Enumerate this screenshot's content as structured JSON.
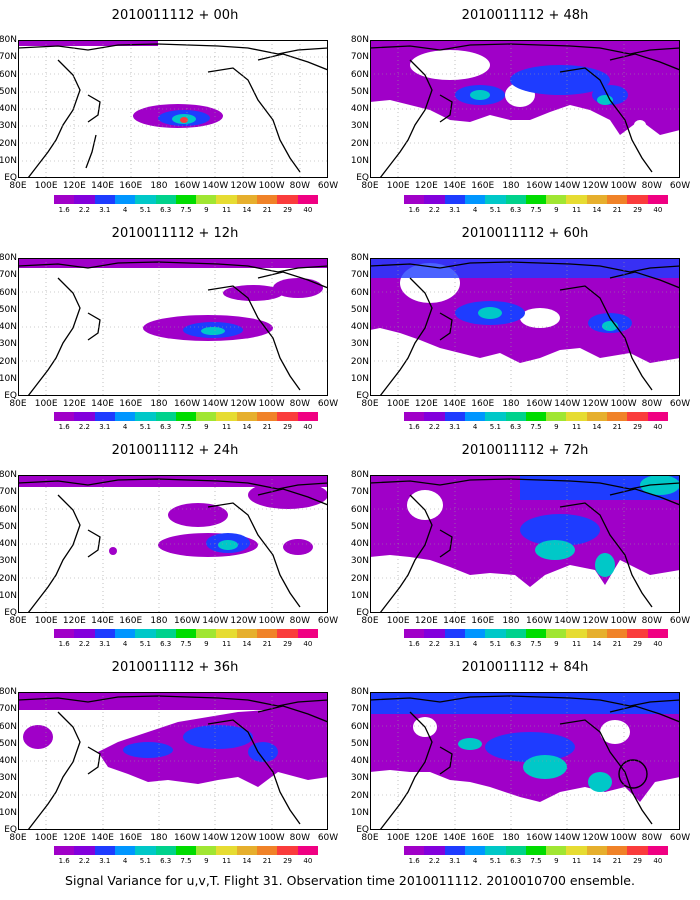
{
  "caption": "Signal Variance for u,v,T. Flight 31. Observation time 2010011112. 2010010700 ensemble.",
  "panels": [
    {
      "title": "2010011112 + 00h"
    },
    {
      "title": "2010011112 + 48h"
    },
    {
      "title": "2010011112 + 12h"
    },
    {
      "title": "2010011112 + 60h"
    },
    {
      "title": "2010011112 + 24h"
    },
    {
      "title": "2010011112 + 72h"
    },
    {
      "title": "2010011112 + 36h"
    },
    {
      "title": "2010011112 + 84h"
    }
  ],
  "lon_ticks": [
    "80E",
    "100E",
    "120E",
    "140E",
    "160E",
    "180",
    "160W",
    "140W",
    "120W",
    "100W",
    "80W",
    "60W"
  ],
  "lat_ticks": [
    "80N",
    "70N",
    "60N",
    "50N",
    "40N",
    "30N",
    "20N",
    "10N",
    "EQ"
  ],
  "colorbar": {
    "labels": [
      "1.6",
      "2.2",
      "3.1",
      "4",
      "5.1",
      "6.3",
      "7.5",
      "9",
      "11",
      "14",
      "21",
      "29",
      "40"
    ],
    "colors": [
      "#a000c8",
      "#8200dc",
      "#1e3cff",
      "#0096ff",
      "#00c8c8",
      "#00d28c",
      "#00dc00",
      "#a0e632",
      "#e6dc32",
      "#e6af2d",
      "#f08228",
      "#fa3c3c",
      "#f00082"
    ]
  }
}
